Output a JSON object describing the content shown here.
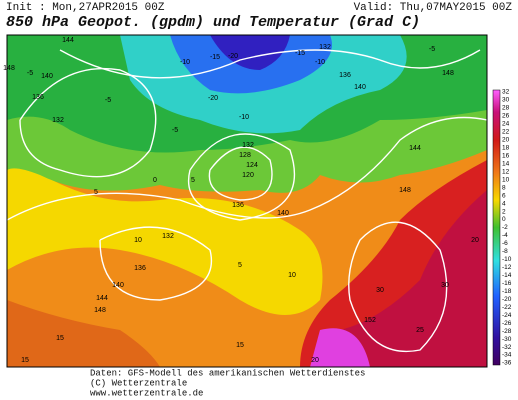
{
  "header": {
    "init": "Init : Mon,27APR2015 00Z",
    "valid": "Valid: Thu,07MAY2015 00Z",
    "title": "850 hPa Geopot. (gpdm) und Temperatur (Grad C)"
  },
  "map": {
    "contour_labels": [
      "148",
      "144",
      "140",
      "136",
      "132",
      "-5",
      "-5",
      "-10",
      "-15",
      "-20",
      "-20",
      "-10",
      "-15",
      "-10",
      "132",
      "136",
      "140",
      "-5",
      "148",
      "128",
      "124",
      "120",
      "132",
      "136",
      "140",
      "0",
      "5",
      "-5",
      "5",
      "10",
      "132",
      "136",
      "140",
      "144",
      "148",
      "5",
      "10",
      "15",
      "20",
      "152",
      "148",
      "144",
      "15",
      "15",
      "20",
      "25",
      "30",
      "30"
    ]
  },
  "colorbar": {
    "labels": [
      32,
      30,
      28,
      26,
      24,
      22,
      20,
      18,
      16,
      14,
      12,
      10,
      8,
      6,
      4,
      2,
      0,
      -2,
      -4,
      -6,
      -8,
      -10,
      -12,
      -14,
      -16,
      -18,
      -20,
      -22,
      -24,
      -26,
      -28,
      -30,
      -32,
      -34,
      -36
    ]
  },
  "footer": {
    "source": "Daten: GFS-Modell des amerikanischen Wetterdienstes",
    "copyright": "(C) Wetterzentrale",
    "url": "www.wetterzentrale.de"
  }
}
